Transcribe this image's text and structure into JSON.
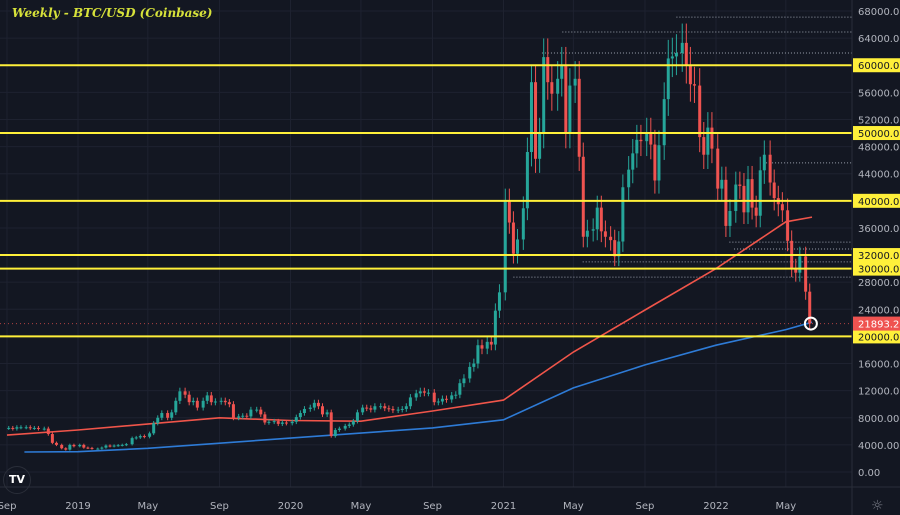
{
  "title": "Weekly - BTC/USD (Coinbase)",
  "logo_text": "TV",
  "icons": {
    "logo": "tradingview-logo-icon",
    "settings": "gear-icon"
  },
  "colors": {
    "background": "#131722",
    "up": "#26a69a",
    "down": "#ef5350",
    "level": "#fff03a",
    "ma_fast": "#f0554a",
    "ma_slow": "#2e7bd6",
    "grid": "#1e2230",
    "axis_text": "#b2b5be"
  },
  "chart_data": {
    "type": "candlestick",
    "title": "Weekly - BTC/USD (Coinbase)",
    "interval": "weekly",
    "ylim": [
      0,
      68000
    ],
    "y_ticks": [
      "68000.00",
      "64000.00",
      "56000.00",
      "52000.00",
      "48000.00",
      "44000.00",
      "36000.00",
      "28000.00",
      "24000.00",
      "16000.00",
      "12000.00",
      "8000.00",
      "4000.00",
      "0.00"
    ],
    "x_ticks": [
      {
        "label": "Sep",
        "date": "2018-09-01"
      },
      {
        "label": "2019",
        "date": "2019-01-01"
      },
      {
        "label": "May",
        "date": "2019-05-01"
      },
      {
        "label": "Sep",
        "date": "2019-09-01"
      },
      {
        "label": "2020",
        "date": "2020-01-01"
      },
      {
        "label": "May",
        "date": "2020-05-01"
      },
      {
        "label": "Sep",
        "date": "2020-09-01"
      },
      {
        "label": "2021",
        "date": "2021-01-01"
      },
      {
        "label": "May",
        "date": "2021-05-01"
      },
      {
        "label": "Sep",
        "date": "2021-09-01"
      },
      {
        "label": "2022",
        "date": "2022-01-01"
      },
      {
        "label": "May",
        "date": "2022-05-01"
      }
    ],
    "weekly_closes_by_month": {
      "2018-09": [
        6500,
        6400,
        6600,
        6600
      ],
      "2018-10": [
        6600,
        6500,
        6500,
        6400
      ],
      "2018-11": [
        6400,
        5600,
        4300,
        4000
      ],
      "2018-12": [
        3500,
        3300,
        4000,
        3800
      ],
      "2019-01": [
        4000,
        3600,
        3550,
        3450
      ],
      "2019-02": [
        3450,
        3600,
        3900,
        3800
      ],
      "2019-03": [
        3900,
        3950,
        4000,
        4100
      ],
      "2019-04": [
        5000,
        5100,
        5300,
        5200
      ],
      "2019-05": [
        5700,
        7200,
        8000,
        8700
      ],
      "2019-06": [
        8000,
        8800,
        10500,
        11900
      ],
      "2019-07": [
        11400,
        10300,
        10500,
        9500
      ],
      "2019-08": [
        10500,
        11300,
        10300,
        10400
      ],
      "2019-09": [
        10500,
        10300,
        10000,
        8000
      ],
      "2019-10": [
        8200,
        8300,
        8200,
        9200
      ],
      "2019-11": [
        9200,
        8500,
        7300,
        7400
      ],
      "2019-12": [
        7500,
        7100,
        7300,
        7200
      ],
      "2020-01": [
        7400,
        8100,
        8700,
        9300
      ],
      "2020-02": [
        9500,
        10200,
        9700,
        8500
      ],
      "2020-03": [
        8800,
        5300,
        6200,
        6400
      ],
      "2020-04": [
        6800,
        7000,
        7500,
        8800
      ],
      "2020-05": [
        9500,
        9400,
        9200,
        9700
      ],
      "2020-06": [
        9700,
        9400,
        9300,
        9100
      ],
      "2020-07": [
        9200,
        9300,
        9700,
        11000
      ],
      "2020-08": [
        11600,
        11900,
        11700,
        11700
      ],
      "2020-09": [
        10300,
        10400,
        10800,
        10700
      ],
      "2020-10": [
        11300,
        11400,
        13100,
        13800
      ],
      "2020-11": [
        15500,
        16000,
        18700,
        18200
      ],
      "2020-12": [
        19200,
        18800,
        23800,
        26500
      ],
      "2021-01": [
        40000,
        36800,
        32200,
        34300
      ],
      "2021-02": [
        38900,
        47200,
        57500,
        46200
      ],
      "2021-03": [
        50000,
        61200,
        57500,
        55800
      ],
      "2021-04": [
        58000,
        60000,
        50000,
        57000
      ],
      "2021-05": [
        58000,
        46500,
        34700,
        35600
      ],
      "2021-06": [
        35800,
        39000,
        35500,
        34700
      ],
      "2021-07": [
        34200,
        31800,
        34000,
        42000
      ],
      "2021-08": [
        44600,
        47000,
        49000,
        48800
      ],
      "2021-09": [
        50000,
        48300,
        43000,
        48200
      ],
      "2021-10": [
        55000,
        61000,
        61300,
        61800
      ],
      "2021-11": [
        63300,
        60000,
        57200,
        57000
      ],
      "2021-12": [
        49400,
        46800,
        50800,
        47700
      ],
      "2022-01": [
        41800,
        43100,
        36300,
        38500
      ],
      "2022-02": [
        42400,
        42200,
        38300,
        43200
      ],
      "2022-03": [
        39000,
        37800,
        44500,
        46800
      ],
      "2022-04": [
        42700,
        40400,
        39500,
        38600
      ],
      "2022-05": [
        34100,
        30100,
        29400,
        31800
      ],
      "2022-06": [
        26600,
        21893.22
      ]
    },
    "moving_averages": [
      {
        "color": "#f0554a",
        "points": [
          [
            "2018-09-01",
            5450
          ],
          [
            "2019-01-01",
            6200
          ],
          [
            "2019-09-01",
            8000
          ],
          [
            "2020-01-01",
            7600
          ],
          [
            "2020-05-01",
            7500
          ],
          [
            "2020-09-01",
            9000
          ],
          [
            "2021-01-01",
            10600
          ],
          [
            "2021-05-01",
            17700
          ],
          [
            "2021-09-01",
            23900
          ],
          [
            "2022-01-01",
            30000
          ],
          [
            "2022-05-01",
            36900
          ],
          [
            "2022-06-15",
            37600
          ]
        ]
      },
      {
        "color": "#2e7bd6",
        "points": [
          [
            "2018-10-01",
            2950
          ],
          [
            "2019-01-01",
            3000
          ],
          [
            "2019-05-01",
            3500
          ],
          [
            "2020-01-01",
            5000
          ],
          [
            "2020-09-01",
            6500
          ],
          [
            "2021-01-01",
            7700
          ],
          [
            "2021-05-01",
            12400
          ],
          [
            "2021-09-01",
            15800
          ],
          [
            "2022-01-01",
            18700
          ],
          [
            "2022-05-01",
            21000
          ],
          [
            "2022-06-15",
            22100
          ]
        ]
      }
    ],
    "horizontal_levels": [
      {
        "value": 60000,
        "label": "60000.00"
      },
      {
        "value": 50000,
        "label": "50000.00"
      },
      {
        "value": 40000,
        "label": "40000.00"
      },
      {
        "value": 32000,
        "label": "32000.00"
      },
      {
        "value": 30000,
        "label": "30000.00"
      },
      {
        "value": 20000,
        "label": "20000.00"
      }
    ],
    "dotted_levels": [
      {
        "value": 67100,
        "from": "2021-10-25"
      },
      {
        "value": 64900,
        "from": "2021-04-12"
      },
      {
        "value": 61800,
        "from": "2021-03-08"
      },
      {
        "value": 45600,
        "from": "2022-03-28"
      },
      {
        "value": 33900,
        "from": "2022-01-24"
      },
      {
        "value": 32900,
        "from": "2022-02-01"
      },
      {
        "value": 31000,
        "from": "2021-05-17"
      },
      {
        "value": 28750,
        "from": "2021-01-18"
      }
    ],
    "last_price": {
      "value": 21893.22,
      "label": "21893.22"
    }
  }
}
